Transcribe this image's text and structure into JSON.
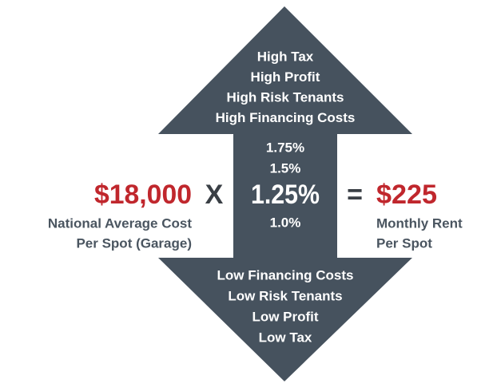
{
  "upper_factors": [
    "High Tax",
    "High Profit",
    "High Risk Tenants",
    "High Financing Costs"
  ],
  "rates": [
    "1.75%",
    "1.5%",
    "1.25%",
    "1.0%"
  ],
  "cost": {
    "value": "$18,000",
    "label": [
      "National Average Cost",
      "Per Spot (Garage)"
    ]
  },
  "operator_multiply": "X",
  "operator_equals": "=",
  "rent": {
    "value": "$225",
    "label": [
      "Monthly Rent",
      "Per Spot"
    ]
  },
  "lower_factors": [
    "Low Financing Costs",
    "Low Risk Tenants",
    "Low Profit",
    "Low Tax"
  ]
}
